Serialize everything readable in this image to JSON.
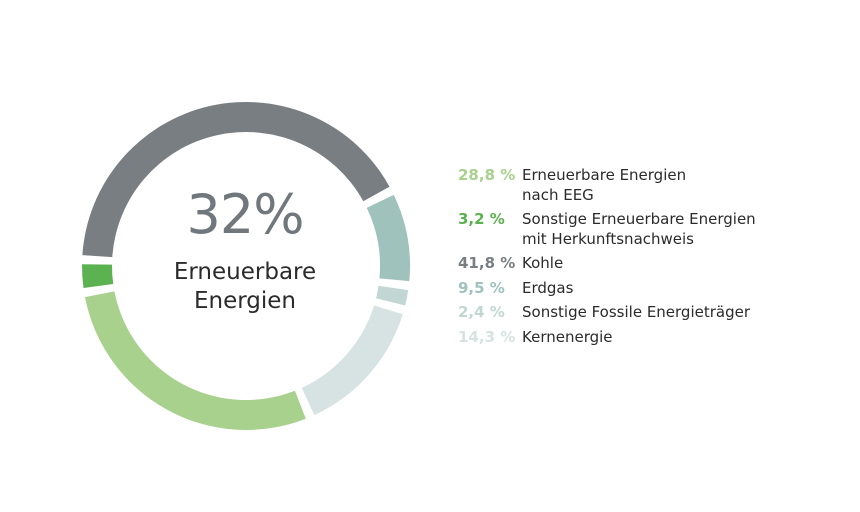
{
  "chart_data": {
    "type": "donut",
    "title": "",
    "center": {
      "value": "32%",
      "label": "Erneuerbare Energien"
    },
    "legend_position": "right",
    "slices": [
      {
        "name": "Erneuerbare Energien nach EEG",
        "value": 28.8,
        "value_label": "28,8 %",
        "color": "#a9d18e"
      },
      {
        "name": "Sonstige Erneuerbare Energien mit Herkunftsnachweis",
        "value": 3.2,
        "value_label": "3,2 %",
        "color": "#5cb150"
      },
      {
        "name": "Kohle",
        "value": 41.8,
        "value_label": "41,8 %",
        "color": "#787e82"
      },
      {
        "name": "Erdgas",
        "value": 9.5,
        "value_label": "9,5 %",
        "color": "#9fc2bd"
      },
      {
        "name": "Sonstige Fossile Energieträger",
        "value": 2.4,
        "value_label": "2,4 %",
        "color": "#c2d7d3"
      },
      {
        "name": "Kernenergie",
        "value": 14.3,
        "value_label": "14,3 %",
        "color": "#d6e3e2"
      }
    ],
    "legend_lines": [
      "Erneuerbare Energien\nnach EEG",
      "Sonstige Erneuerbare Energien\nmit Herkunftsnachweis",
      "Kohle",
      "Erdgas",
      "Sonstige Fossile Energieträger",
      "Kernenergie"
    ]
  }
}
